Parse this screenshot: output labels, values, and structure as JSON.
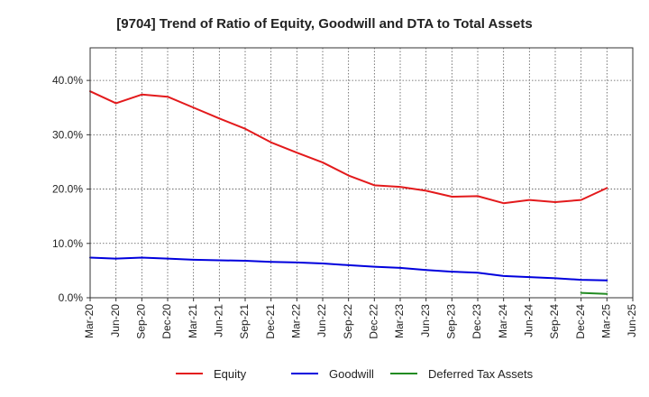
{
  "chart_data": {
    "type": "line",
    "title": "[9704]  Trend of Ratio of Equity, Goodwill and DTA to Total Assets",
    "xlabel": "",
    "ylabel": "",
    "x_ticks": [
      "Mar-20",
      "Jun-20",
      "Sep-20",
      "Dec-20",
      "Mar-21",
      "Jun-21",
      "Sep-21",
      "Dec-21",
      "Mar-22",
      "Jun-22",
      "Sep-22",
      "Dec-22",
      "Mar-23",
      "Jun-23",
      "Sep-23",
      "Dec-23",
      "Mar-24",
      "Jun-24",
      "Sep-24",
      "Dec-24",
      "Mar-25",
      "Jun-25"
    ],
    "y_ticks": [
      "0.0%",
      "10.0%",
      "20.0%",
      "30.0%",
      "40.0%"
    ],
    "ylim": [
      0,
      46
    ],
    "grid": true,
    "series": [
      {
        "name": "Equity",
        "color": "#e31a1c",
        "start_index": 0,
        "values": [
          38.0,
          35.8,
          37.4,
          37.0,
          35.0,
          33.0,
          31.1,
          28.6,
          26.7,
          24.9,
          22.5,
          20.7,
          20.4,
          19.7,
          18.6,
          18.7,
          17.4,
          18.0,
          17.6,
          18.0,
          20.2
        ]
      },
      {
        "name": "Goodwill",
        "color": "#0000dd",
        "start_index": 0,
        "values": [
          7.4,
          7.2,
          7.4,
          7.2,
          7.0,
          6.9,
          6.8,
          6.6,
          6.5,
          6.3,
          6.0,
          5.7,
          5.5,
          5.1,
          4.8,
          4.6,
          4.0,
          3.8,
          3.6,
          3.3,
          3.2
        ]
      },
      {
        "name": "Deferred Tax Assets",
        "color": "#228b22",
        "start_index": 19,
        "values": [
          0.9,
          0.7
        ]
      }
    ],
    "legend_position": "bottom"
  }
}
